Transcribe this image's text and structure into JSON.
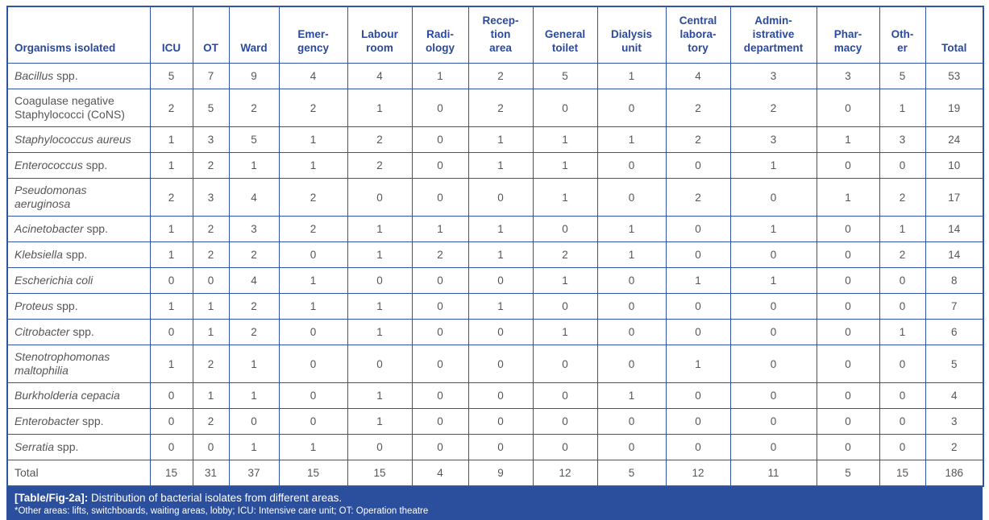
{
  "colors": {
    "border_blue": "#2e55a3",
    "header_text_blue": "#2b4a9e",
    "body_text_gray": "#565659",
    "caption_bar_blue": "#2b4f9d",
    "caption_text": "#ffffff"
  },
  "table": {
    "columns": [
      "Organisms isolated",
      "ICU",
      "OT",
      "Ward",
      "Emer-\ngency",
      "Labour\nroom",
      "Radi-\nology",
      "Recep-\ntion\narea",
      "General\ntoilet",
      "Dialysis\nunit",
      "Central\nlabora-\ntory",
      "Admin-\nistrative\ndepartment",
      "Phar-\nmacy",
      "Oth-\ner",
      "Total"
    ],
    "rows": [
      {
        "name_italic": "Bacillus",
        "name_regular": " spp.",
        "values": [
          5,
          7,
          9,
          4,
          4,
          1,
          2,
          5,
          1,
          4,
          3,
          3,
          5,
          53
        ]
      },
      {
        "name_italic": "",
        "name_regular": "Coagulase negative\nStaphylococci (CoNS)",
        "values": [
          2,
          5,
          2,
          2,
          1,
          0,
          2,
          0,
          0,
          2,
          2,
          0,
          1,
          19
        ]
      },
      {
        "name_italic": "Staphylococcus aureus",
        "name_regular": "",
        "values": [
          1,
          3,
          5,
          1,
          2,
          0,
          1,
          1,
          1,
          2,
          3,
          1,
          3,
          24
        ]
      },
      {
        "name_italic": "Enterococcus",
        "name_regular": " spp.",
        "values": [
          1,
          2,
          1,
          1,
          2,
          0,
          1,
          1,
          0,
          0,
          1,
          0,
          0,
          10
        ]
      },
      {
        "name_italic": "Pseudomonas\naeruginosa",
        "name_regular": "",
        "values": [
          2,
          3,
          4,
          2,
          0,
          0,
          0,
          1,
          0,
          2,
          0,
          1,
          2,
          17
        ]
      },
      {
        "name_italic": "Acinetobacter",
        "name_regular": " spp.",
        "values": [
          1,
          2,
          3,
          2,
          1,
          1,
          1,
          0,
          1,
          0,
          1,
          0,
          1,
          14
        ]
      },
      {
        "name_italic": "Klebsiella",
        "name_regular": " spp.",
        "values": [
          1,
          2,
          2,
          0,
          1,
          2,
          1,
          2,
          1,
          0,
          0,
          0,
          2,
          14
        ]
      },
      {
        "name_italic": "Escherichia coli",
        "name_regular": "",
        "values": [
          0,
          0,
          4,
          1,
          0,
          0,
          0,
          1,
          0,
          1,
          1,
          0,
          0,
          8
        ]
      },
      {
        "name_italic": "Proteus",
        "name_regular": " spp.",
        "values": [
          1,
          1,
          2,
          1,
          1,
          0,
          1,
          0,
          0,
          0,
          0,
          0,
          0,
          7
        ]
      },
      {
        "name_italic": "Citrobacter",
        "name_regular": " spp.",
        "values": [
          0,
          1,
          2,
          0,
          1,
          0,
          0,
          1,
          0,
          0,
          0,
          0,
          1,
          6
        ]
      },
      {
        "name_italic": "Stenotrophomonas\nmaltophilia",
        "name_regular": "",
        "values": [
          1,
          2,
          1,
          0,
          0,
          0,
          0,
          0,
          0,
          1,
          0,
          0,
          0,
          5
        ]
      },
      {
        "name_italic": "Burkholderia cepacia",
        "name_regular": "",
        "values": [
          0,
          1,
          1,
          0,
          1,
          0,
          0,
          0,
          1,
          0,
          0,
          0,
          0,
          4
        ]
      },
      {
        "name_italic": "Enterobacter",
        "name_regular": " spp.",
        "values": [
          0,
          2,
          0,
          0,
          1,
          0,
          0,
          0,
          0,
          0,
          0,
          0,
          0,
          3
        ]
      },
      {
        "name_italic": "Serratia",
        "name_regular": " spp.",
        "values": [
          0,
          0,
          1,
          1,
          0,
          0,
          0,
          0,
          0,
          0,
          0,
          0,
          0,
          2
        ]
      },
      {
        "name_italic": "",
        "name_regular": "Total",
        "values": [
          15,
          31,
          37,
          15,
          15,
          4,
          9,
          12,
          5,
          12,
          11,
          5,
          15,
          186
        ]
      }
    ]
  },
  "footer": {
    "tag": "[Table/Fig-2a]:",
    "caption": " Distribution of bacterial isolates from different areas.",
    "note": "*Other areas: lifts, switchboards, waiting areas, lobby; ICU: Intensive care unit; OT: Operation theatre"
  }
}
